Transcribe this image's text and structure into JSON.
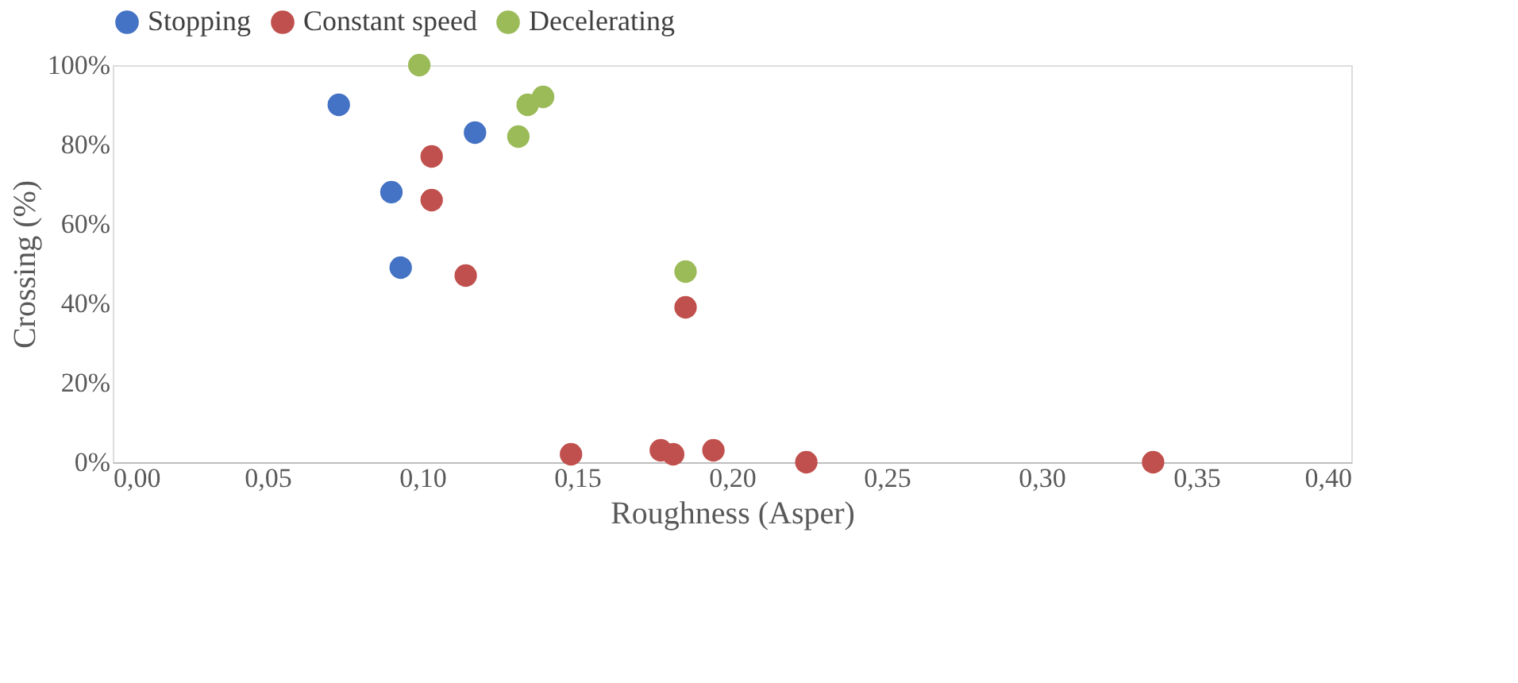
{
  "chart_data": {
    "type": "scatter",
    "xlabel": "Roughness (Asper)",
    "ylabel": "Crossing (%)",
    "xlim": [
      0,
      0.4
    ],
    "xticks": [
      {
        "value": 0,
        "label": "0,00"
      },
      {
        "value": 0.05,
        "label": "0,05"
      },
      {
        "value": 0.1,
        "label": "0,10"
      },
      {
        "value": 0.15,
        "label": "0,15"
      },
      {
        "value": 0.2,
        "label": "0,20"
      },
      {
        "value": 0.25,
        "label": "0,25"
      },
      {
        "value": 0.3,
        "label": "0,30"
      },
      {
        "value": 0.35,
        "label": "0,35"
      },
      {
        "value": 0.4,
        "label": "0,40"
      }
    ],
    "ylim": [
      0,
      100
    ],
    "yticks": [
      {
        "value": 0,
        "label": "0%"
      },
      {
        "value": 20,
        "label": "20%"
      },
      {
        "value": 40,
        "label": "40%"
      },
      {
        "value": 60,
        "label": "60%"
      },
      {
        "value": 80,
        "label": "80%"
      },
      {
        "value": 100,
        "label": "100%"
      }
    ],
    "grid": false,
    "legend": "top",
    "marker": "circle",
    "series": [
      {
        "name": "Stopping",
        "color": "#4472c4",
        "x": [
          0.073,
          0.09,
          0.093,
          0.117
        ],
        "values": [
          90,
          68,
          49,
          83
        ]
      },
      {
        "name": "Constant speed",
        "color": "#c0504d",
        "x": [
          0.103,
          0.103,
          0.114,
          0.148,
          0.177,
          0.181,
          0.194,
          0.185,
          0.224,
          0.336
        ],
        "values": [
          77,
          66,
          47,
          2,
          3,
          2,
          3,
          39,
          0,
          0
        ]
      },
      {
        "name": "Decelerating",
        "color": "#9bbb59",
        "x": [
          0.099,
          0.134,
          0.139,
          0.131,
          0.185
        ],
        "values": [
          100,
          90,
          92,
          82,
          48
        ]
      }
    ]
  }
}
